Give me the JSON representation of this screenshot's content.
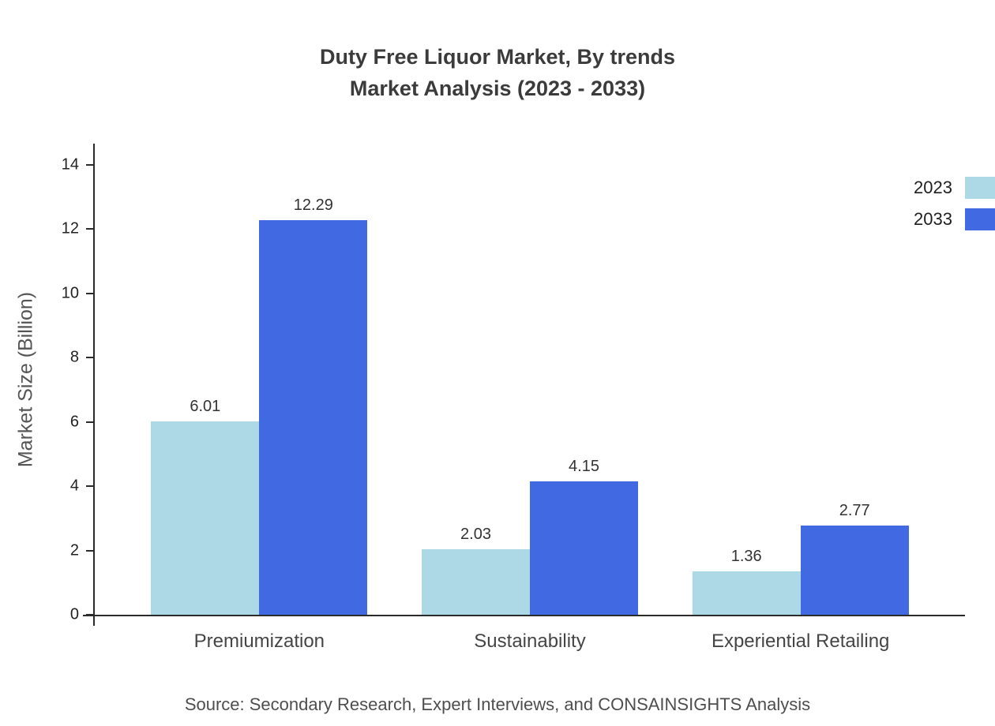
{
  "chart_data": {
    "type": "bar",
    "title": "Duty Free Liquor Market, By trends",
    "subtitle": "Market Analysis (2023 - 2033)",
    "ylabel": "Market Size (Billion)",
    "xlabel": "",
    "ylim": [
      0,
      14
    ],
    "yticks": [
      0,
      2,
      4,
      6,
      8,
      10,
      12,
      14
    ],
    "grid": false,
    "legend_position": "top-right",
    "categories": [
      "Premiumization",
      "Sustainability",
      "Experiential Retailing"
    ],
    "series": [
      {
        "name": "2023",
        "color": "#add8e6",
        "values": [
          6.01,
          2.03,
          1.36
        ]
      },
      {
        "name": "2033",
        "color": "#4169e1",
        "values": [
          12.29,
          4.15,
          2.77
        ]
      }
    ]
  },
  "footer": {
    "source": "Source: Secondary Research, Expert Interviews, and CONSAINSIGHTS Analysis"
  }
}
